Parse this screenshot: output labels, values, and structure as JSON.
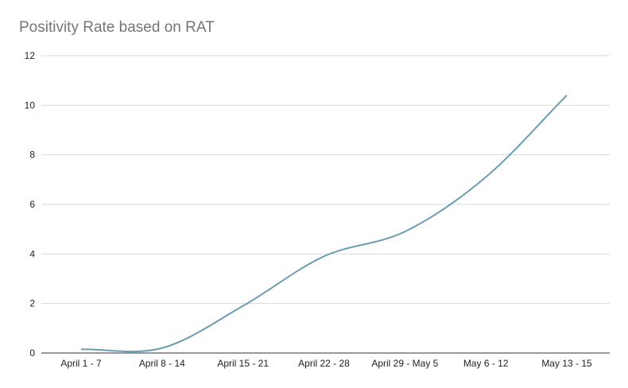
{
  "chart_data": {
    "type": "line",
    "title": "Positivity Rate based on RAT",
    "xlabel": "",
    "ylabel": "",
    "categories": [
      "April 1 - 7",
      "April 8 - 14",
      "April 15 - 21",
      "April 22 - 28",
      "April 29 - May 5",
      "May 6 - 12",
      "May 13 - 15"
    ],
    "series": [
      {
        "values": [
          0.15,
          0.2,
          1.9,
          3.9,
          4.9,
          7.1,
          10.4
        ]
      }
    ],
    "ylim": [
      0,
      12
    ],
    "yticks": [
      0,
      2,
      4,
      6,
      8,
      10,
      12
    ],
    "grid": true,
    "legend": "none",
    "colors": {
      "line": "#6a9cb3",
      "grid": "#d9d9d9",
      "axis": "#333333",
      "title": "#757575"
    }
  }
}
